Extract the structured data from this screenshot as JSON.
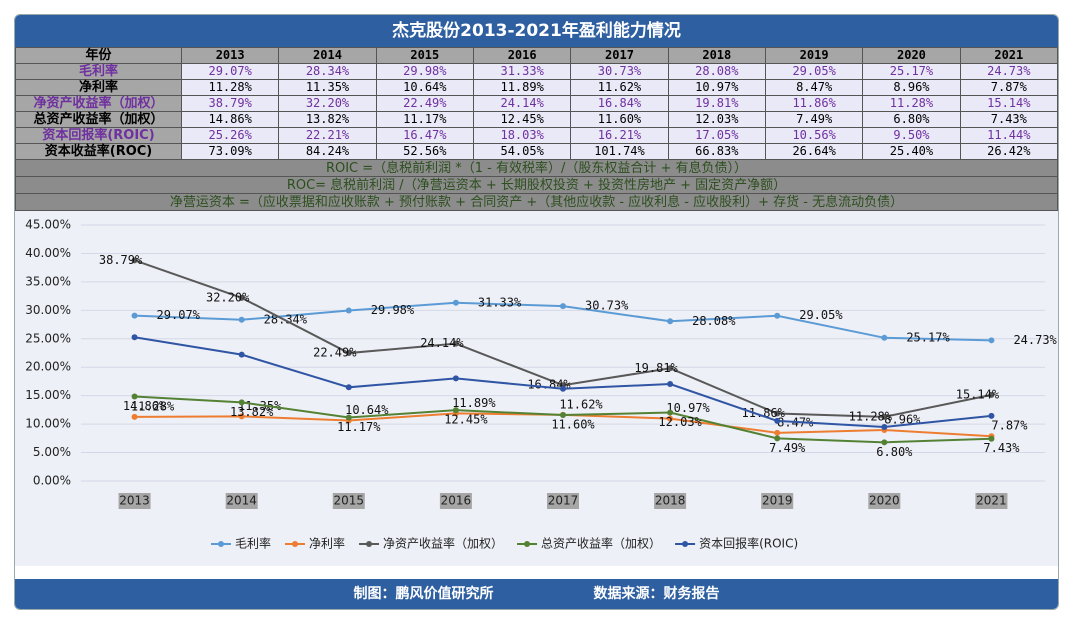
{
  "title": "杰克股份2013-2021年盈利能力情况",
  "table": {
    "header": [
      "年份",
      "2013",
      "2014",
      "2015",
      "2016",
      "2017",
      "2018",
      "2019",
      "2020",
      "2021"
    ],
    "rows": [
      [
        "毛利率",
        "29.07%",
        "28.34%",
        "29.98%",
        "31.33%",
        "30.73%",
        "28.08%",
        "29.05%",
        "25.17%",
        "24.73%"
      ],
      [
        "净利率",
        "11.28%",
        "11.35%",
        "10.64%",
        "11.89%",
        "11.62%",
        "10.97%",
        "8.47%",
        "8.96%",
        "7.87%"
      ],
      [
        "净资产收益率（加权）",
        "38.79%",
        "32.20%",
        "22.49%",
        "24.14%",
        "16.84%",
        "19.81%",
        "11.86%",
        "11.28%",
        "15.14%"
      ],
      [
        "总资产收益率（加权）",
        "14.86%",
        "13.82%",
        "11.17%",
        "12.45%",
        "11.60%",
        "12.03%",
        "7.49%",
        "6.80%",
        "7.43%"
      ],
      [
        "资本回报率(ROIC)",
        "25.26%",
        "22.21%",
        "16.47%",
        "18.03%",
        "16.21%",
        "17.05%",
        "10.56%",
        "9.50%",
        "11.44%"
      ],
      [
        "资本收益率(ROC)",
        "73.09%",
        "84.24%",
        "52.56%",
        "54.05%",
        "101.74%",
        "66.83%",
        "26.64%",
        "25.40%",
        "26.42%"
      ]
    ]
  },
  "notes": [
    "ROIC =（息税前利润 *（1 - 有效税率）/（股东权益合计 + 有息负债））",
    "ROC= 息税前利润 /（净营运资本 + 长期股权投资 + 投资性房地产 + 固定资产净额）",
    "净营运资本 =（应收票据和应收账款 + 预付账款 + 合同资产 +（其他应收款 - 应收利息 - 应收股利）+ 存货 - 无息流动负债）"
  ],
  "chart_data": {
    "type": "line",
    "categories": [
      "2013",
      "2014",
      "2015",
      "2016",
      "2017",
      "2018",
      "2019",
      "2020",
      "2021"
    ],
    "ylim": [
      0,
      45
    ],
    "yticks": [
      {
        "value": 0,
        "label": "0.00%"
      },
      {
        "value": 5,
        "label": "5.00%"
      },
      {
        "value": 10,
        "label": "10.00%"
      },
      {
        "value": 15,
        "label": "15.00%"
      },
      {
        "value": 20,
        "label": "20.00%"
      },
      {
        "value": 25,
        "label": "25.00%"
      },
      {
        "value": 30,
        "label": "30.00%"
      },
      {
        "value": 35,
        "label": "35.00%"
      },
      {
        "value": 40,
        "label": "40.00%"
      },
      {
        "value": 45,
        "label": "45.00%"
      }
    ],
    "grid": true,
    "legend": "bottom",
    "series": [
      {
        "name": "毛利率",
        "color": "#5b9bd5",
        "values": [
          29.07,
          28.34,
          29.98,
          31.33,
          30.73,
          28.08,
          29.05,
          25.17,
          24.73
        ],
        "value_labels": [
          "29.07%",
          "28.34%",
          "29.98%",
          "31.33%",
          "30.73%",
          "28.08%",
          "29.05%",
          "25.17%",
          "24.73%"
        ]
      },
      {
        "name": "净利率",
        "color": "#ed7d31",
        "values": [
          11.28,
          11.35,
          10.64,
          11.89,
          11.62,
          10.97,
          8.47,
          8.96,
          7.87
        ],
        "value_labels": [
          "11.28%",
          "11.35%",
          "10.64%",
          "11.89%",
          "11.62%",
          "10.97%",
          "8.47%",
          "8.96%",
          "7.87%"
        ]
      },
      {
        "name": "净资产收益率（加权）",
        "color": "#595959",
        "values": [
          38.79,
          32.2,
          22.49,
          24.14,
          16.84,
          19.81,
          11.86,
          11.28,
          15.14
        ],
        "value_labels": [
          "38.79%",
          "32.20%",
          "22.49%",
          "24.14%",
          "16.84%",
          "19.81%",
          "11.86%",
          "11.28%",
          "15.14%"
        ]
      },
      {
        "name": "总资产收益率（加权）",
        "color": "#548235",
        "values": [
          14.86,
          13.82,
          11.17,
          12.45,
          11.6,
          12.03,
          7.49,
          6.8,
          7.43
        ],
        "value_labels": [
          "14.86%",
          "13.82%",
          "11.17%",
          "12.45%",
          "11.60%",
          "12.03%",
          "7.49%",
          "6.80%",
          "7.43%"
        ]
      },
      {
        "name": "资本回报率(ROIC)",
        "color": "#2f55a4",
        "values": [
          25.26,
          22.21,
          16.47,
          18.03,
          16.21,
          17.05,
          10.56,
          9.5,
          11.44
        ]
      }
    ]
  },
  "footer": {
    "credit": "制图：鹏风价值研究所",
    "source": "数据来源：财务报告"
  }
}
